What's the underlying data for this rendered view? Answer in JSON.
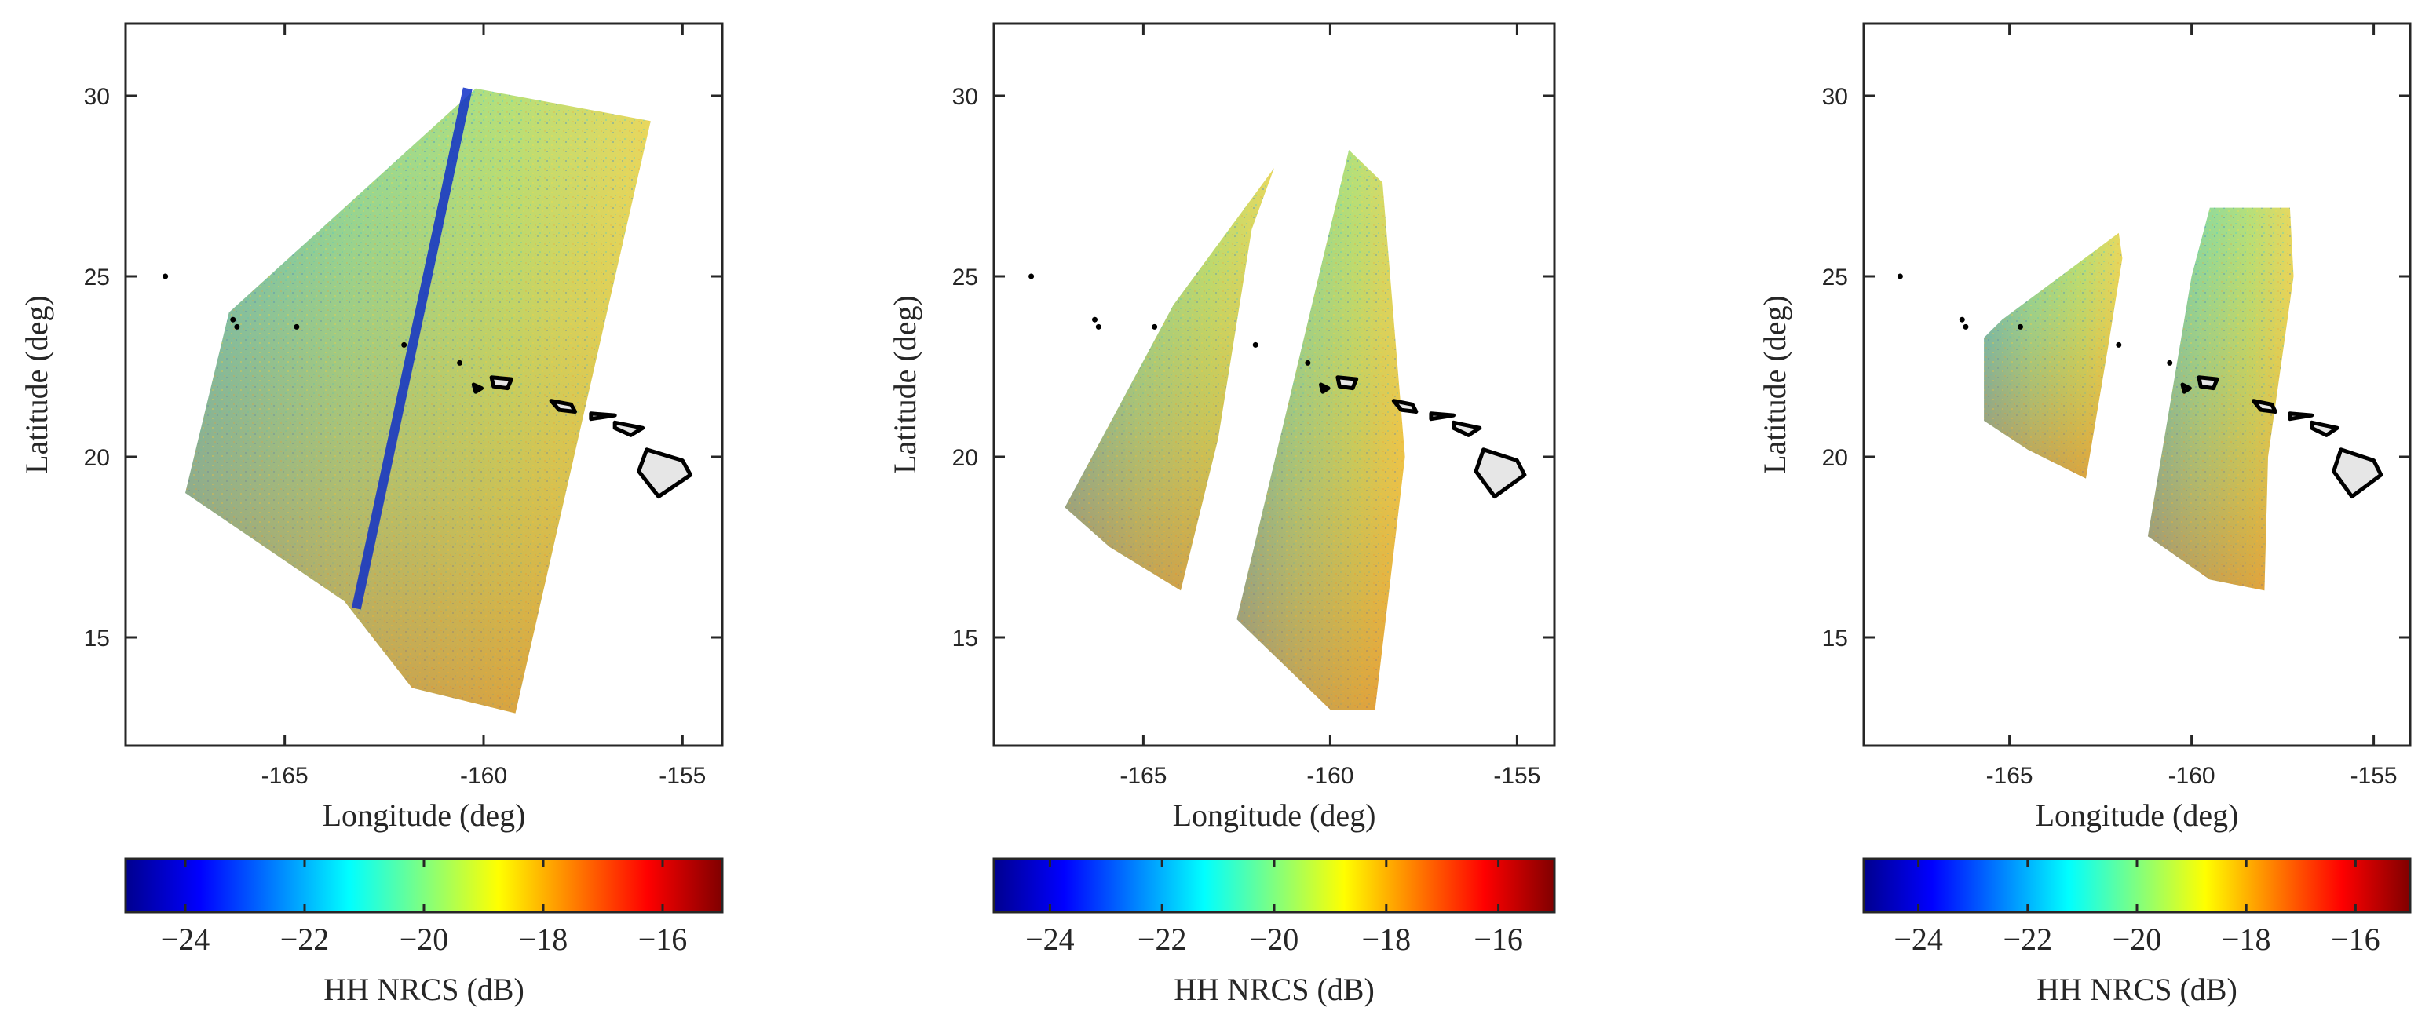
{
  "chart_data": [
    {
      "type": "heatmap",
      "panel": "left",
      "xlabel": "Longitude (deg)",
      "ylabel": "Latitude (deg)",
      "xlim": [
        -169,
        -154
      ],
      "ylim": [
        12,
        32
      ],
      "xticks": [
        -165,
        -160,
        -155
      ],
      "yticks": [
        15,
        20,
        25,
        30
      ],
      "xtick_labels": [
        "-165",
        "-160",
        "-155"
      ],
      "ytick_labels": [
        "15",
        "20",
        "25",
        "30"
      ],
      "coverage_polygons": [
        [
          [
            -166.4,
            24.0
          ],
          [
            -160.2,
            30.2
          ],
          [
            -155.8,
            29.3
          ],
          [
            -159.2,
            12.9
          ],
          [
            -161.8,
            13.6
          ],
          [
            -163.5,
            16.0
          ],
          [
            -167.5,
            19.0
          ]
        ]
      ],
      "low_backscatter_streak": [
        [
          -160.4,
          30.2
        ],
        [
          -163.2,
          15.8
        ]
      ],
      "colorbar": {
        "label": "HH NRCS (dB)",
        "range": [
          -25,
          -15
        ],
        "ticks": [
          -24,
          -22,
          -20,
          -18,
          -16
        ],
        "tick_labels": [
          "−24",
          "−22",
          "−20",
          "−18",
          "−16"
        ],
        "colormap": "jet"
      }
    },
    {
      "type": "heatmap",
      "panel": "center",
      "xlabel": "Longitude (deg)",
      "ylabel": "Latitude (deg)",
      "xlim": [
        -169,
        -154
      ],
      "ylim": [
        12,
        32
      ],
      "xticks": [
        -165,
        -160,
        -155
      ],
      "yticks": [
        15,
        20,
        25,
        30
      ],
      "xtick_labels": [
        "-165",
        "-160",
        "-155"
      ],
      "ytick_labels": [
        "15",
        "20",
        "25",
        "30"
      ],
      "coverage_polygons": [
        [
          [
            -167.1,
            18.6
          ],
          [
            -164.2,
            24.2
          ],
          [
            -161.5,
            28.0
          ],
          [
            -162.1,
            26.3
          ],
          [
            -163.0,
            20.5
          ],
          [
            -164.0,
            16.3
          ],
          [
            -165.9,
            17.5
          ]
        ],
        [
          [
            -162.5,
            15.5
          ],
          [
            -161.0,
            22.0
          ],
          [
            -159.5,
            28.5
          ],
          [
            -158.6,
            27.6
          ],
          [
            -158.0,
            20.0
          ],
          [
            -158.8,
            13.0
          ],
          [
            -160.0,
            13.0
          ]
        ]
      ],
      "colorbar": {
        "label": "HH NRCS (dB)",
        "range": [
          -25,
          -15
        ],
        "ticks": [
          -24,
          -22,
          -20,
          -18,
          -16
        ],
        "tick_labels": [
          "−24",
          "−22",
          "−20",
          "−18",
          "−16"
        ],
        "colormap": "jet"
      }
    },
    {
      "type": "heatmap",
      "panel": "right",
      "xlabel": "Longitude (deg)",
      "ylabel": "Latitude (deg)",
      "xlim": [
        -169,
        -154
      ],
      "ylim": [
        12,
        32
      ],
      "xticks": [
        -165,
        -160,
        -155
      ],
      "yticks": [
        15,
        20,
        25,
        30
      ],
      "xtick_labels": [
        "-165",
        "-160",
        "-155"
      ],
      "ytick_labels": [
        "15",
        "20",
        "25",
        "30"
      ],
      "coverage_polygons": [
        [
          [
            -165.2,
            23.8
          ],
          [
            -162.0,
            26.2
          ],
          [
            -161.9,
            25.5
          ],
          [
            -162.3,
            23.0
          ],
          [
            -162.9,
            19.4
          ],
          [
            -164.5,
            20.2
          ],
          [
            -165.7,
            21.0
          ],
          [
            -165.7,
            23.3
          ]
        ],
        [
          [
            -161.2,
            17.8
          ],
          [
            -160.0,
            25.0
          ],
          [
            -159.5,
            26.9
          ],
          [
            -157.3,
            26.9
          ],
          [
            -157.2,
            25.0
          ],
          [
            -157.9,
            20.0
          ],
          [
            -158.0,
            16.3
          ],
          [
            -159.5,
            16.6
          ]
        ]
      ],
      "colorbar": {
        "label": "HH NRCS (dB)",
        "range": [
          -25,
          -15
        ],
        "ticks": [
          -24,
          -22,
          -20,
          -18,
          -16
        ],
        "tick_labels": [
          "−24",
          "−22",
          "−20",
          "−18",
          "−16"
        ],
        "colormap": "jet"
      }
    }
  ],
  "islands": [
    {
      "name": "Hawaii",
      "points": [
        [
          -155.9,
          20.2
        ],
        [
          -155.0,
          19.9
        ],
        [
          -154.8,
          19.5
        ],
        [
          -155.6,
          18.9
        ],
        [
          -156.1,
          19.6
        ]
      ]
    },
    {
      "name": "Maui",
      "points": [
        [
          -156.7,
          20.95
        ],
        [
          -156.0,
          20.8
        ],
        [
          -156.3,
          20.6
        ],
        [
          -156.7,
          20.8
        ]
      ]
    },
    {
      "name": "Molokai",
      "points": [
        [
          -157.3,
          21.2
        ],
        [
          -156.7,
          21.15
        ],
        [
          -157.3,
          21.05
        ]
      ]
    },
    {
      "name": "Oahu",
      "points": [
        [
          -158.3,
          21.55
        ],
        [
          -157.8,
          21.45
        ],
        [
          -157.7,
          21.25
        ],
        [
          -158.1,
          21.3
        ]
      ]
    },
    {
      "name": "Kauai",
      "points": [
        [
          -159.8,
          22.2
        ],
        [
          -159.3,
          22.15
        ],
        [
          -159.4,
          21.9
        ],
        [
          -159.75,
          21.95
        ]
      ]
    },
    {
      "name": "Niihau",
      "points": [
        [
          -160.25,
          22.0
        ],
        [
          -160.05,
          21.9
        ],
        [
          -160.2,
          21.8
        ]
      ]
    }
  ],
  "islets": [
    {
      "name": "Kure",
      "points": [
        [
          -168.0,
          25.0
        ]
      ]
    },
    {
      "name": "Laysan",
      "points": [
        [
          -166.3,
          23.8
        ],
        [
          -166.2,
          23.6
        ]
      ]
    },
    {
      "name": "Gardner",
      "points": [
        [
          -164.7,
          23.6
        ]
      ]
    },
    {
      "name": "Necker",
      "points": [
        [
          -162.0,
          23.1
        ]
      ]
    },
    {
      "name": "Nihoa",
      "points": [
        [
          -160.6,
          22.6
        ]
      ]
    }
  ],
  "colors": {
    "axis": "#262626",
    "island_fill": "#e6e6e6",
    "island_stroke": "#000000"
  }
}
